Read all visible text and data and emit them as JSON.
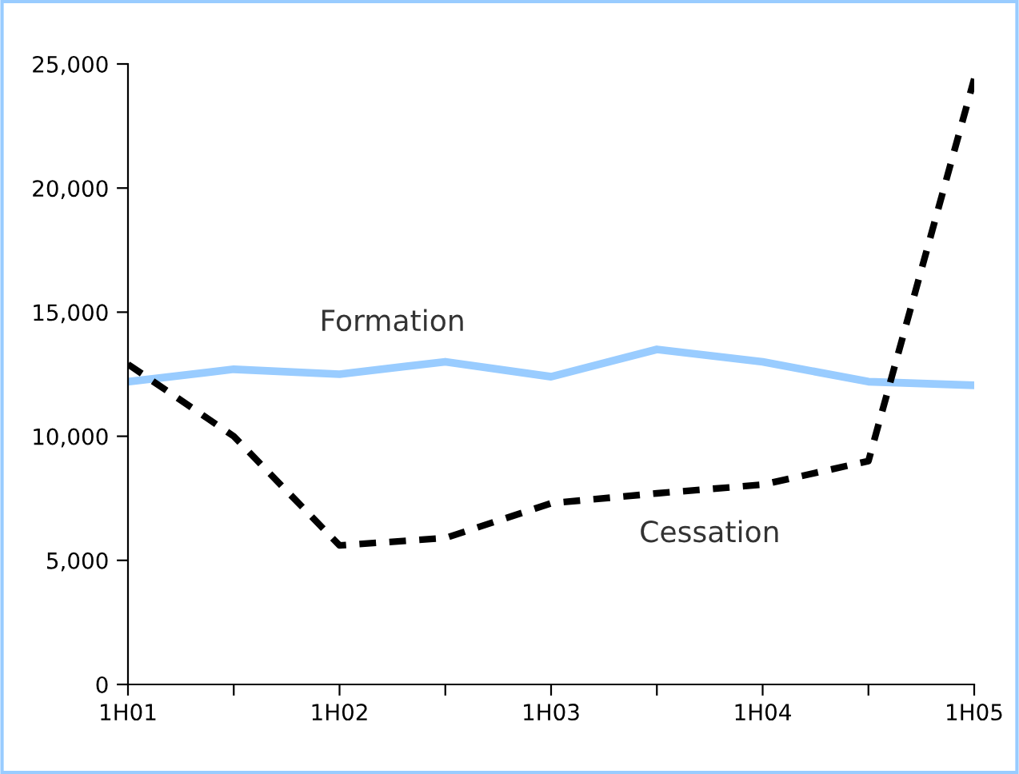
{
  "chart_data": {
    "type": "line",
    "categories": [
      "1H01",
      null,
      "1H02",
      null,
      "1H03",
      null,
      "1H04",
      null,
      "1H05"
    ],
    "series": [
      {
        "name": "Formation",
        "color": "#99ccff",
        "line_style": "solid",
        "values": [
          12200,
          12700,
          12500,
          13000,
          12400,
          13500,
          13000,
          12200,
          12050
        ]
      },
      {
        "name": "Cessation",
        "color": "#000000",
        "line_style": "dashed",
        "values": [
          12900,
          10000,
          5600,
          5900,
          7300,
          7700,
          8050,
          9000,
          24400
        ]
      }
    ],
    "ylim": [
      0,
      25000
    ],
    "yticks": [
      {
        "value": 0,
        "label": "0"
      },
      {
        "value": 5000,
        "label": "5,000"
      },
      {
        "value": 10000,
        "label": "10,000"
      },
      {
        "value": 15000,
        "label": "15,000"
      },
      {
        "value": 20000,
        "label": "20,000"
      },
      {
        "value": 25000,
        "label": "25,000"
      }
    ],
    "grid": false,
    "legend": false,
    "marker": "none"
  }
}
